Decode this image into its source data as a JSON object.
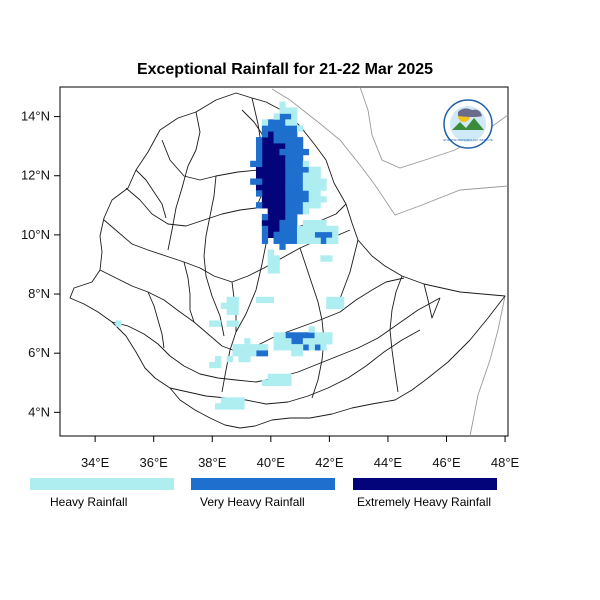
{
  "title": "Exceptional Rainfall for 21-22 Mar 2025",
  "axes": {
    "x_ticks": [
      {
        "value": 34,
        "label": "34°E"
      },
      {
        "value": 36,
        "label": "36°E"
      },
      {
        "value": 38,
        "label": "38°E"
      },
      {
        "value": 40,
        "label": "40°E"
      },
      {
        "value": 42,
        "label": "42°E"
      },
      {
        "value": 44,
        "label": "44°E"
      },
      {
        "value": 46,
        "label": "46°E"
      },
      {
        "value": 48,
        "label": "48°E"
      }
    ],
    "y_ticks": [
      {
        "value": 4,
        "label": "4°N"
      },
      {
        "value": 6,
        "label": "6°N"
      },
      {
        "value": 8,
        "label": "8°N"
      },
      {
        "value": 10,
        "label": "10°N"
      },
      {
        "value": 12,
        "label": "12°N"
      },
      {
        "value": 14,
        "label": "14°N"
      }
    ],
    "lon_range": [
      32.8,
      48.1
    ],
    "lat_range": [
      3.2,
      15.0
    ]
  },
  "legend": [
    {
      "label": "Heavy Rainfall",
      "color": "#aeeef0"
    },
    {
      "label": "Very Heavy Rainfall",
      "color": "#1f6fcf"
    },
    {
      "label": "Extremely Heavy Rainfall",
      "color": "#04047a"
    }
  ],
  "logo": {
    "icon": "meteorology-agency-logo",
    "text": "ETHIOPIAN METEOROLOGY INSTITUTE"
  },
  "colors": {
    "border": "#1a1a1a",
    "neighbor_border": "#9a9a9a"
  }
}
